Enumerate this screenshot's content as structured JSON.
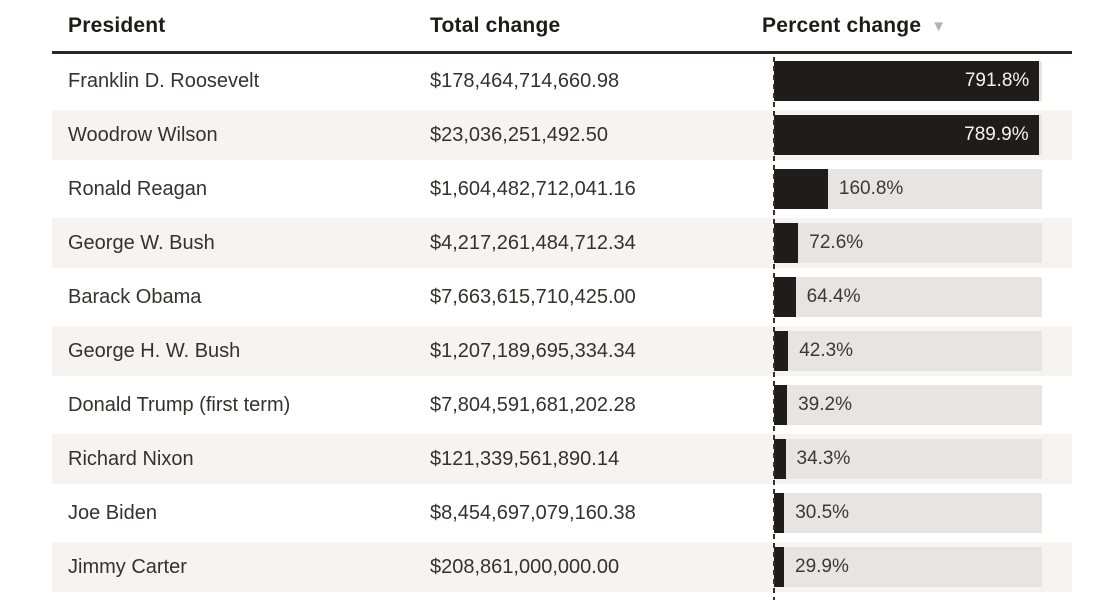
{
  "table": {
    "columns": [
      {
        "label": "President"
      },
      {
        "label": "Total change"
      },
      {
        "label": "Percent change",
        "sort_direction": "descending",
        "sort_icon": "▼"
      }
    ],
    "rows": [
      {
        "president": "Franklin D. Roosevelt",
        "total_change": "$178,464,714,660.98",
        "percent_change": 791.8,
        "percent_label": "791.8%"
      },
      {
        "president": "Woodrow Wilson",
        "total_change": "$23,036,251,492.50",
        "percent_change": 789.9,
        "percent_label": "789.9%"
      },
      {
        "president": "Ronald Reagan",
        "total_change": "$1,604,482,712,041.16",
        "percent_change": 160.8,
        "percent_label": "160.8%"
      },
      {
        "president": "George W. Bush",
        "total_change": "$4,217,261,484,712.34",
        "percent_change": 72.6,
        "percent_label": "72.6%"
      },
      {
        "president": "Barack Obama",
        "total_change": "$7,663,615,710,425.00",
        "percent_change": 64.4,
        "percent_label": "64.4%"
      },
      {
        "president": "George H. W. Bush",
        "total_change": "$1,207,189,695,334.34",
        "percent_change": 42.3,
        "percent_label": "42.3%"
      },
      {
        "president": "Donald Trump (first term)",
        "total_change": "$7,804,591,681,202.28",
        "percent_change": 39.2,
        "percent_label": "39.2%"
      },
      {
        "president": "Richard Nixon",
        "total_change": "$121,339,561,890.14",
        "percent_change": 34.3,
        "percent_label": "34.3%"
      },
      {
        "president": "Joe Biden",
        "total_change": "$8,454,697,079,160.38",
        "percent_change": 30.5,
        "percent_label": "30.5%"
      },
      {
        "president": "Jimmy Carter",
        "total_change": "$208,861,000,000.00",
        "percent_change": 29.9,
        "percent_label": "29.9%"
      }
    ]
  },
  "chart_data": {
    "type": "bar",
    "orientation": "horizontal",
    "title": "",
    "categories": [
      "Franklin D. Roosevelt",
      "Woodrow Wilson",
      "Ronald Reagan",
      "George W. Bush",
      "Barack Obama",
      "George H. W. Bush",
      "Donald Trump (first term)",
      "Richard Nixon",
      "Joe Biden",
      "Jimmy Carter"
    ],
    "series": [
      {
        "name": "Percent change",
        "values": [
          791.8,
          789.9,
          160.8,
          72.6,
          64.4,
          42.3,
          39.2,
          34.3,
          30.5,
          29.9
        ]
      },
      {
        "name": "Total change",
        "values": [
          "$178,464,714,660.98",
          "$23,036,251,492.50",
          "$1,604,482,712,041.16",
          "$4,217,261,484,712.34",
          "$7,663,615,710,425.00",
          "$1,207,189,695,334.34",
          "$7,804,591,681,202.28",
          "$121,339,561,890.14",
          "$8,454,697,079,160.38",
          "$208,861,000,000.00"
        ]
      }
    ],
    "xlim": [
      0,
      800
    ],
    "sorted_by": "Percent change descending",
    "grid": false,
    "legend": false
  },
  "colors": {
    "bar_fill": "#201c1b",
    "bar_track": "#e7e4e2",
    "row_alt_background": "#f6f3f1",
    "header_rule": "#2b2726",
    "text": "#353130",
    "label_on_bar": "#f5f2f0",
    "sort_arrow": "#b4b1af"
  }
}
